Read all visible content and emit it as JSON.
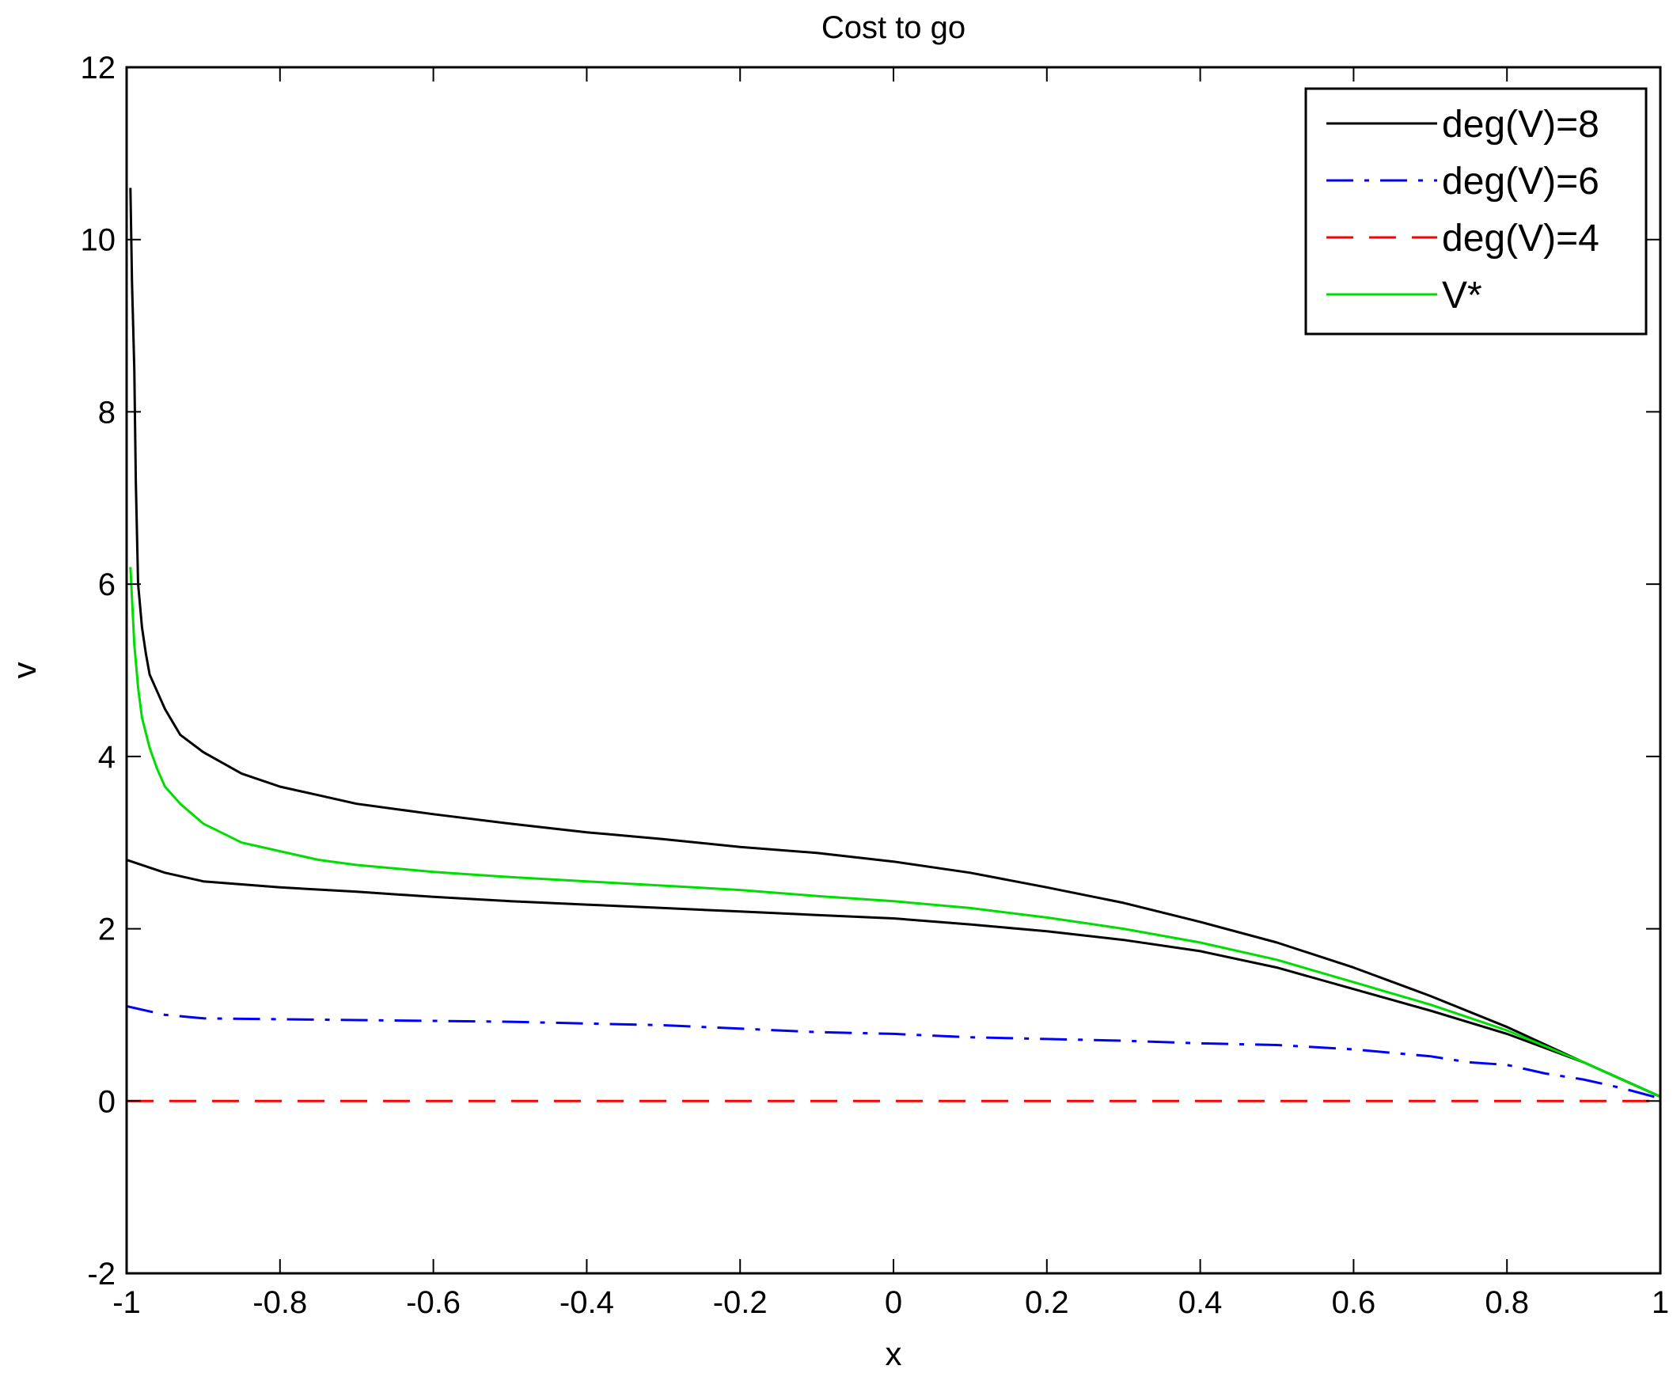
{
  "chart_data": {
    "type": "line",
    "title": "Cost to go",
    "xlabel": "x",
    "ylabel": "v",
    "xlim": [
      -1,
      1
    ],
    "ylim": [
      -2,
      12
    ],
    "xticks": [
      -1,
      -0.8,
      -0.6,
      -0.4,
      -0.2,
      0,
      0.2,
      0.4,
      0.6,
      0.8,
      1
    ],
    "xtick_labels": [
      "-1",
      "-0.8",
      "-0.6",
      "-0.4",
      "-0.2",
      "0",
      "0.2",
      "0.4",
      "0.6",
      "0.8",
      "1"
    ],
    "yticks": [
      -2,
      0,
      2,
      4,
      6,
      8,
      10,
      12
    ],
    "ytick_labels": [
      "-2",
      "0",
      "2",
      "4",
      "6",
      "8",
      "10",
      "12"
    ],
    "grid": false,
    "legend_position": "top-right",
    "series": [
      {
        "name": "deg(V)=8",
        "color": "#000000",
        "style": "solid",
        "branches": [
          {
            "x": [
              -0.995,
              -0.993,
              -0.99,
              -0.988,
              -0.985,
              -0.983,
              -0.98,
              -0.975,
              -0.97,
              -0.96,
              -0.95,
              -0.94,
              -0.93,
              -0.9,
              -0.85,
              -0.8,
              -0.75,
              -0.7,
              -0.6,
              -0.5,
              -0.4,
              -0.3,
              -0.2,
              -0.1,
              0.0,
              0.1,
              0.2,
              0.3,
              0.4,
              0.5,
              0.6,
              0.7,
              0.8,
              0.9,
              1.0
            ],
            "y": [
              10.6,
              9.5,
              8.5,
              7.2,
              6.0,
              5.8,
              5.5,
              5.2,
              4.95,
              4.75,
              4.55,
              4.4,
              4.25,
              4.05,
              3.8,
              3.65,
              3.55,
              3.45,
              3.33,
              3.22,
              3.12,
              3.04,
              2.95,
              2.88,
              2.78,
              2.65,
              2.48,
              2.3,
              2.08,
              1.84,
              1.55,
              1.22,
              0.86,
              0.45,
              0.05
            ]
          },
          {
            "x": [
              -1.0,
              -0.95,
              -0.9,
              -0.8,
              -0.7,
              -0.6,
              -0.5,
              -0.4,
              -0.3,
              -0.2,
              -0.1,
              0.0,
              0.1,
              0.2,
              0.3,
              0.4,
              0.5,
              0.6,
              0.7,
              0.8,
              0.9,
              1.0
            ],
            "y": [
              2.8,
              2.65,
              2.55,
              2.48,
              2.43,
              2.37,
              2.32,
              2.28,
              2.24,
              2.2,
              2.16,
              2.12,
              2.05,
              1.97,
              1.87,
              1.74,
              1.55,
              1.3,
              1.05,
              0.78,
              0.45,
              0.05
            ]
          }
        ]
      },
      {
        "name": "deg(V)=6",
        "color": "#0000ff",
        "style": "dash-dot",
        "x": [
          -1.0,
          -0.95,
          -0.9,
          -0.8,
          -0.7,
          -0.6,
          -0.5,
          -0.4,
          -0.3,
          -0.2,
          -0.1,
          0.0,
          0.1,
          0.2,
          0.3,
          0.4,
          0.5,
          0.6,
          0.7,
          0.75,
          0.8,
          0.85,
          0.9,
          0.95,
          1.0
        ],
        "y": [
          1.1,
          1.0,
          0.96,
          0.95,
          0.94,
          0.93,
          0.92,
          0.9,
          0.88,
          0.84,
          0.8,
          0.78,
          0.74,
          0.72,
          0.7,
          0.67,
          0.65,
          0.6,
          0.52,
          0.45,
          0.42,
          0.32,
          0.25,
          0.15,
          0.03
        ]
      },
      {
        "name": "deg(V)=4",
        "color": "#ff0000",
        "style": "dashed",
        "x": [
          -1.0,
          1.0
        ],
        "y": [
          0.0,
          0.0
        ]
      },
      {
        "name": "V*",
        "color": "#00dd00",
        "style": "solid",
        "x": [
          -0.995,
          -0.99,
          -0.985,
          -0.98,
          -0.97,
          -0.96,
          -0.95,
          -0.93,
          -0.9,
          -0.85,
          -0.8,
          -0.75,
          -0.7,
          -0.6,
          -0.5,
          -0.4,
          -0.3,
          -0.2,
          -0.1,
          0.0,
          0.1,
          0.2,
          0.3,
          0.4,
          0.5,
          0.6,
          0.7,
          0.8,
          0.9,
          1.0
        ],
        "y": [
          6.2,
          5.3,
          4.8,
          4.45,
          4.1,
          3.85,
          3.65,
          3.45,
          3.22,
          3.0,
          2.9,
          2.8,
          2.74,
          2.66,
          2.6,
          2.55,
          2.5,
          2.45,
          2.38,
          2.32,
          2.24,
          2.13,
          2.0,
          1.84,
          1.64,
          1.38,
          1.12,
          0.82,
          0.45,
          0.05
        ]
      }
    ]
  }
}
